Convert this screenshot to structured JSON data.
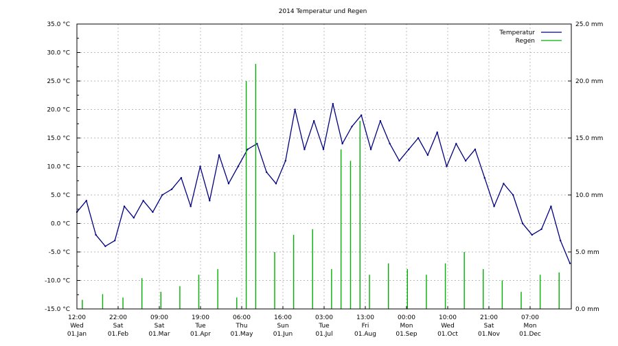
{
  "chart_data": {
    "type": "line",
    "title": "2014 Temperatur und Regen",
    "legend_position": "top-right",
    "grid": true,
    "y_left": {
      "min": -15.0,
      "max": 35.0,
      "ticks": [
        "35.0 °C",
        "30.0 °C",
        "25.0 °C",
        "20.0 °C",
        "15.0 °C",
        "10.0 °C",
        "5.0 °C",
        "0.0 °C",
        "-5.0 °C",
        "-10.0 °C",
        "-15.0 °C"
      ]
    },
    "y_right": {
      "min": 0.0,
      "max": 25.0,
      "ticks": [
        "25.0 mm",
        "20.0 mm",
        "15.0 mm",
        "10.0 mm",
        "5.0 mm",
        "0.0 mm"
      ]
    },
    "x_ticks": [
      {
        "time": "12:00",
        "day": "Wed",
        "date": "01.Jan"
      },
      {
        "time": "22:00",
        "day": "Sat",
        "date": "01.Feb"
      },
      {
        "time": "09:00",
        "day": "Sat",
        "date": "01.Mar"
      },
      {
        "time": "19:00",
        "day": "Tue",
        "date": "01.Apr"
      },
      {
        "time": "06:00",
        "day": "Thu",
        "date": "01.May"
      },
      {
        "time": "16:00",
        "day": "Sun",
        "date": "01.Jun"
      },
      {
        "time": "03:00",
        "day": "Tue",
        "date": "01.Jul"
      },
      {
        "time": "13:00",
        "day": "Fri",
        "date": "01.Aug"
      },
      {
        "time": "00:00",
        "day": "Mon",
        "date": "01.Sep"
      },
      {
        "time": "10:00",
        "day": "Wed",
        "date": "01.Oct"
      },
      {
        "time": "21:00",
        "day": "Sat",
        "date": "01.Nov"
      },
      {
        "time": "07:00",
        "day": "Mon",
        "date": "01.Dec"
      }
    ],
    "series": [
      {
        "name": "Temperatur",
        "axis": "left",
        "color": "#000080",
        "x": [
          "2014-01-01",
          "2014-01-08",
          "2014-01-15",
          "2014-01-22",
          "2014-01-29",
          "2014-02-05",
          "2014-02-12",
          "2014-02-19",
          "2014-02-26",
          "2014-03-05",
          "2014-03-12",
          "2014-03-19",
          "2014-03-26",
          "2014-04-02",
          "2014-04-09",
          "2014-04-16",
          "2014-04-23",
          "2014-04-30",
          "2014-05-07",
          "2014-05-14",
          "2014-05-21",
          "2014-05-28",
          "2014-06-04",
          "2014-06-11",
          "2014-06-18",
          "2014-06-25",
          "2014-07-02",
          "2014-07-09",
          "2014-07-16",
          "2014-07-23",
          "2014-07-30",
          "2014-08-06",
          "2014-08-13",
          "2014-08-20",
          "2014-08-27",
          "2014-09-03",
          "2014-09-10",
          "2014-09-17",
          "2014-09-24",
          "2014-10-01",
          "2014-10-08",
          "2014-10-15",
          "2014-10-22",
          "2014-10-29",
          "2014-11-05",
          "2014-11-12",
          "2014-11-19",
          "2014-11-26",
          "2014-12-03",
          "2014-12-10",
          "2014-12-17",
          "2014-12-24",
          "2014-12-31"
        ],
        "values": [
          2.0,
          4.0,
          -2.0,
          -4.0,
          -3.0,
          3.0,
          1.0,
          4.0,
          2.0,
          5.0,
          6.0,
          8.0,
          3.0,
          10.0,
          4.0,
          12.0,
          7.0,
          10.0,
          13.0,
          14.0,
          9.0,
          7.0,
          11.0,
          20.0,
          13.0,
          18.0,
          13.0,
          21.0,
          14.0,
          17.0,
          19.0,
          13.0,
          18.0,
          14.0,
          11.0,
          13.0,
          15.0,
          12.0,
          16.0,
          10.0,
          14.0,
          11.0,
          13.0,
          8.0,
          3.0,
          7.0,
          5.0,
          0.0,
          -2.0,
          -1.0,
          3.0,
          -3.0,
          -7.0
        ]
      },
      {
        "name": "Regen",
        "axis": "right",
        "color": "#00b000",
        "x": [
          "2014-01-05",
          "2014-01-20",
          "2014-02-04",
          "2014-02-18",
          "2014-03-04",
          "2014-03-18",
          "2014-04-01",
          "2014-04-15",
          "2014-04-29",
          "2014-05-06",
          "2014-05-13",
          "2014-05-27",
          "2014-06-10",
          "2014-06-24",
          "2014-07-08",
          "2014-07-15",
          "2014-07-22",
          "2014-07-29",
          "2014-08-05",
          "2014-08-19",
          "2014-09-02",
          "2014-09-16",
          "2014-09-30",
          "2014-10-14",
          "2014-10-28",
          "2014-11-11",
          "2014-11-25",
          "2014-12-09",
          "2014-12-23"
        ],
        "values": [
          0.8,
          1.3,
          1.0,
          2.7,
          1.5,
          2.0,
          3.0,
          3.5,
          1.0,
          20.0,
          21.5,
          5.0,
          6.5,
          7.0,
          3.5,
          14.0,
          13.0,
          16.5,
          3.0,
          4.0,
          3.5,
          3.0,
          4.0,
          5.0,
          3.5,
          2.5,
          1.5,
          3.0,
          3.2
        ]
      }
    ]
  }
}
